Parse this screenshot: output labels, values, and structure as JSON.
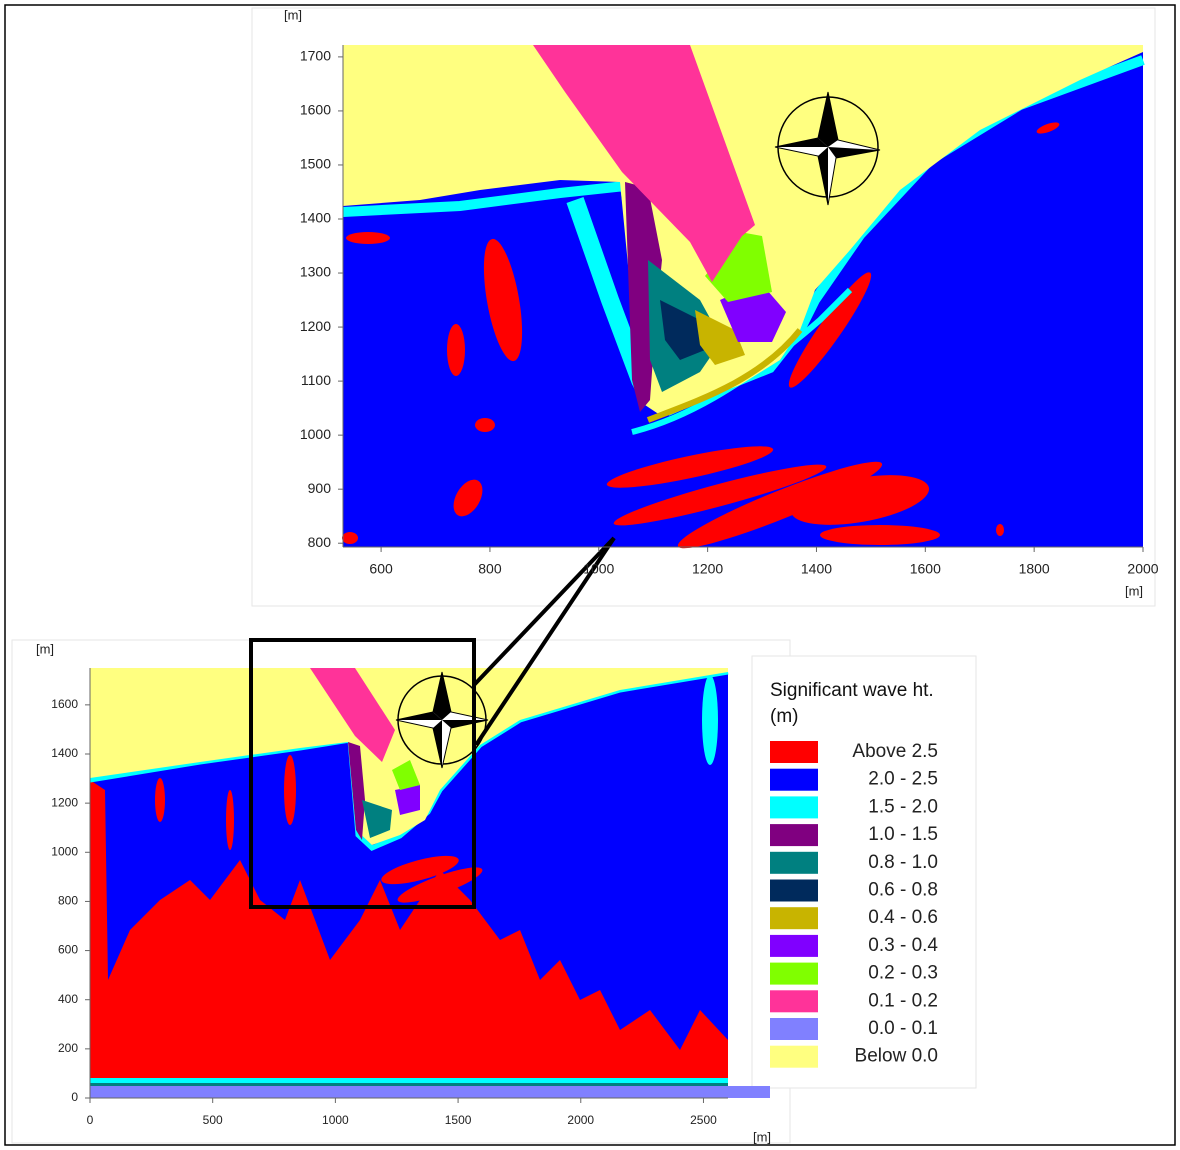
{
  "chart_data": [
    {
      "type": "contour",
      "x_label": "[m]",
      "y_label": "[m]",
      "xlim": [
        530,
        2000
      ],
      "ylim": [
        793,
        1722
      ],
      "xticks": [
        600,
        800,
        1000,
        1200,
        1400,
        1600,
        1800,
        2000
      ],
      "yticks": [
        800,
        900,
        1000,
        1100,
        1200,
        1300,
        1400,
        1500,
        1600,
        1700
      ]
    },
    {
      "type": "contour",
      "x_label": "[m]",
      "y_label": "[m]",
      "xlim": [
        0,
        2600
      ],
      "ylim": [
        0,
        1750
      ],
      "xticks": [
        0,
        500,
        1000,
        1500,
        2000,
        2500
      ],
      "yticks": [
        0,
        200,
        400,
        600,
        800,
        1000,
        1200,
        1400,
        1600
      ],
      "legend": {
        "title": "Significant wave ht. (m)",
        "entries": [
          {
            "label": "Above 2.5",
            "color": "#ff0000"
          },
          {
            "label": "2.0 - 2.5",
            "color": "#0000ff"
          },
          {
            "label": "1.5 - 2.0",
            "color": "#00ffff"
          },
          {
            "label": "1.0 - 1.5",
            "color": "#800080"
          },
          {
            "label": "0.8 - 1.0",
            "color": "#008080"
          },
          {
            "label": "0.6 - 0.8",
            "color": "#002a5c"
          },
          {
            "label": "0.4 - 0.6",
            "color": "#c8b400"
          },
          {
            "label": "0.3 - 0.4",
            "color": "#8000ff"
          },
          {
            "label": "0.2 - 0.3",
            "color": "#80ff00"
          },
          {
            "label": "0.1 - 0.2",
            "color": "#ff3399"
          },
          {
            "label": "0.0 - 0.1",
            "color": "#8080ff"
          },
          {
            "label": "Below 0.0",
            "color": "#ffff80"
          }
        ]
      }
    }
  ]
}
